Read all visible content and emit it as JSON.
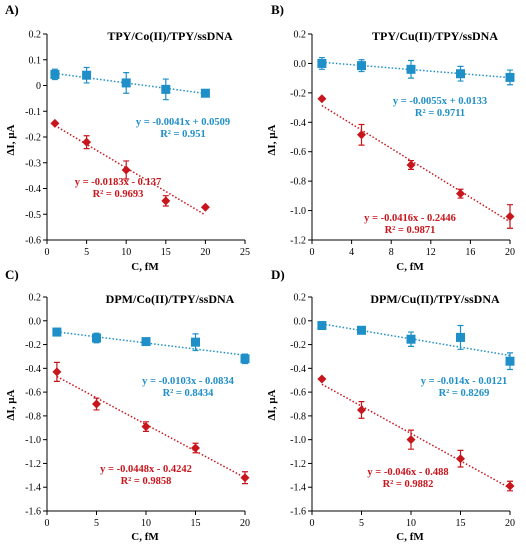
{
  "chart_data": [
    {
      "type": "scatter",
      "panel_label": "A)",
      "title": "TPY/Co(II)/TPY/ssDNA",
      "xlabel": "C, fM",
      "ylabel": "ΔI, µA",
      "xlim": [
        0,
        25
      ],
      "ylim": [
        -0.6,
        0.2
      ],
      "xticks": [
        0,
        5,
        10,
        15,
        20,
        25
      ],
      "xtick_labels": [
        "0",
        "5",
        "10",
        "15",
        "20",
        "25"
      ],
      "yticks": [
        0.2,
        0.1,
        0,
        -0.1,
        -0.2,
        -0.3,
        -0.4,
        -0.5,
        -0.6
      ],
      "ytick_labels": [
        "0.2",
        "0.1",
        "0",
        "-0.1",
        "-0.2",
        "-0.3",
        "-0.4",
        "-0.5",
        "-0.6"
      ],
      "grid": false,
      "series": [
        {
          "color": "#1F8FC8",
          "marker": "square",
          "x": [
            1,
            5,
            10,
            15,
            20
          ],
          "y": [
            0.043,
            0.04,
            0.01,
            -0.015,
            -0.03
          ],
          "err": [
            0.02,
            0.03,
            0.04,
            0.04,
            0.0
          ],
          "fit": {
            "slope": -0.0041,
            "intercept": 0.0509
          },
          "equation": "y = -0.0041x + 0.0509",
          "r2": "R² = 0.951"
        },
        {
          "color": "#C8161D",
          "marker": "diamond",
          "x": [
            1,
            5,
            10,
            15,
            20
          ],
          "y": [
            -0.147,
            -0.22,
            -0.328,
            -0.448,
            -0.473
          ],
          "err": [
            0.0,
            0.025,
            0.035,
            0.02,
            0.0
          ],
          "fit": {
            "slope": -0.0183,
            "intercept": -0.137
          },
          "equation": "y = -0.0183x - 0.137",
          "r2": "R² = 0.9693"
        }
      ]
    },
    {
      "type": "scatter",
      "panel_label": "B)",
      "title": "TPY/Cu(II)/TPY/ssDNA",
      "xlabel": "C, fM",
      "ylabel": "ΔI, µA",
      "xlim": [
        0,
        20
      ],
      "ylim": [
        -1.2,
        0.2
      ],
      "xticks": [
        0,
        4,
        8,
        12,
        16,
        20
      ],
      "xtick_labels": [
        "0",
        "4",
        "8",
        "12",
        "16",
        "20"
      ],
      "yticks": [
        0.2,
        0,
        -0.2,
        -0.4,
        -0.6,
        -0.8,
        -1.0,
        -1.2
      ],
      "ytick_labels": [
        "0.2",
        "0.0",
        "-0.2",
        "-0.4",
        "-0.6",
        "-0.8",
        "-1.0",
        "-1.2"
      ],
      "grid": false,
      "series": [
        {
          "color": "#1F8FC8",
          "marker": "square",
          "x": [
            1,
            5,
            10,
            15,
            20
          ],
          "y": [
            0.0,
            -0.015,
            -0.04,
            -0.07,
            -0.095
          ],
          "err": [
            0.04,
            0.04,
            0.06,
            0.05,
            0.05
          ],
          "fit": {
            "slope": -0.0055,
            "intercept": 0.0133
          },
          "equation": "y = -0.0055x + 0.0133",
          "r2": "R² = 0.9711"
        },
        {
          "color": "#C8161D",
          "marker": "diamond",
          "x": [
            1,
            5,
            10,
            15,
            20
          ],
          "y": [
            -0.24,
            -0.485,
            -0.69,
            -0.885,
            -1.04
          ],
          "err": [
            0.0,
            0.07,
            0.03,
            0.03,
            0.08
          ],
          "fit": {
            "slope": -0.0416,
            "intercept": -0.2446
          },
          "equation": "y = -0.0416x - 0.2446",
          "r2": "R² = 0.9871"
        }
      ]
    },
    {
      "type": "scatter",
      "panel_label": "C)",
      "title": "DPM/Co(II)/TPY/ssDNA",
      "xlabel": "C, fM",
      "ylabel": "ΔI, µA",
      "xlim": [
        0,
        20
      ],
      "ylim": [
        -1.6,
        0.2
      ],
      "xticks": [
        0,
        5,
        10,
        15,
        20
      ],
      "xtick_labels": [
        "0",
        "5",
        "10",
        "15",
        "20"
      ],
      "yticks": [
        0.2,
        0,
        -0.2,
        -0.4,
        -0.6,
        -0.8,
        -1.0,
        -1.2,
        -1.4,
        -1.6
      ],
      "ytick_labels": [
        "0.2",
        "0.0",
        "-0.2",
        "-0.4",
        "-0.6",
        "-0.8",
        "-1.0",
        "-1.2",
        "-1.4",
        "-1.6"
      ],
      "grid": false,
      "series": [
        {
          "color": "#1F8FC8",
          "marker": "square",
          "x": [
            1,
            5,
            10,
            15,
            20
          ],
          "y": [
            -0.095,
            -0.145,
            -0.175,
            -0.18,
            -0.32
          ],
          "err": [
            0.03,
            0.04,
            0.02,
            0.07,
            0.04
          ],
          "fit": {
            "slope": -0.0103,
            "intercept": -0.0834
          },
          "equation": "y = -0.0103x - 0.0834",
          "r2": "R² = 0.8434"
        },
        {
          "color": "#C8161D",
          "marker": "diamond",
          "x": [
            1,
            5,
            10,
            15,
            20
          ],
          "y": [
            -0.43,
            -0.7,
            -0.89,
            -1.07,
            -1.32
          ],
          "err": [
            0.08,
            0.05,
            0.04,
            0.04,
            0.05
          ],
          "fit": {
            "slope": -0.0448,
            "intercept": -0.4242
          },
          "equation": "y = -0.0448x - 0.4242",
          "r2": "R² = 0.9858"
        }
      ]
    },
    {
      "type": "scatter",
      "panel_label": "D)",
      "title": "DPM/Cu(II)/TPY/ssDNA",
      "xlabel": "C, fM",
      "ylabel": "ΔI, µA",
      "xlim": [
        0,
        20
      ],
      "ylim": [
        -1.6,
        0.2
      ],
      "xticks": [
        0,
        5,
        10,
        15,
        20
      ],
      "xtick_labels": [
        "0",
        "5",
        "10",
        "15",
        "20"
      ],
      "yticks": [
        0.2,
        0,
        -0.2,
        -0.4,
        -0.6,
        -0.8,
        -1.0,
        -1.2,
        -1.4,
        -1.6
      ],
      "ytick_labels": [
        "0.2",
        "0.0",
        "-0.2",
        "-0.4",
        "-0.6",
        "-0.8",
        "-1.0",
        "-1.2",
        "-1.4",
        "-1.6"
      ],
      "grid": false,
      "series": [
        {
          "color": "#1F8FC8",
          "marker": "square",
          "x": [
            1,
            5,
            10,
            15,
            20
          ],
          "y": [
            -0.04,
            -0.08,
            -0.155,
            -0.14,
            -0.34
          ],
          "err": [
            0.0,
            0.0,
            0.06,
            0.1,
            0.07
          ],
          "fit": {
            "slope": -0.014,
            "intercept": -0.0121
          },
          "equation": "y = -0.014x - 0.0121",
          "r2": "R² = 0.8269"
        },
        {
          "color": "#C8161D",
          "marker": "diamond",
          "x": [
            1,
            5,
            10,
            15,
            20
          ],
          "y": [
            -0.49,
            -0.75,
            -1.0,
            -1.16,
            -1.39
          ],
          "err": [
            0.0,
            0.07,
            0.08,
            0.07,
            0.04
          ],
          "fit": {
            "slope": -0.046,
            "intercept": -0.488
          },
          "equation": "y = -0.046x - 0.488",
          "r2": "R² = 0.9882"
        }
      ]
    }
  ]
}
